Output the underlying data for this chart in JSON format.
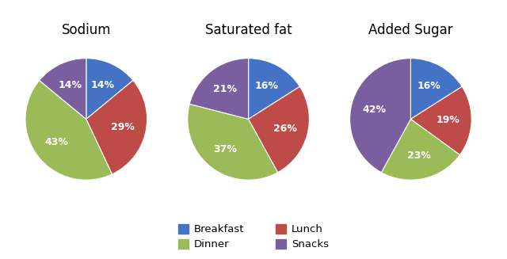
{
  "charts": [
    {
      "title": "Sodium",
      "values": [
        14,
        29,
        43,
        14
      ],
      "labels": [
        "14%",
        "29%",
        "43%",
        "14%"
      ],
      "order": [
        "Breakfast",
        "Lunch",
        "Dinner",
        "Snacks"
      ],
      "startangle": 90
    },
    {
      "title": "Saturated fat",
      "values": [
        16,
        26,
        37,
        21
      ],
      "labels": [
        "16%",
        "26%",
        "37%",
        "21%"
      ],
      "order": [
        "Breakfast",
        "Lunch",
        "Dinner",
        "Snacks"
      ],
      "startangle": 90
    },
    {
      "title": "Added Sugar",
      "values": [
        16,
        19,
        23,
        42
      ],
      "labels": [
        "16%",
        "19%",
        "23%",
        "42%"
      ],
      "order": [
        "Breakfast",
        "Lunch",
        "Dinner",
        "Snacks"
      ],
      "startangle": 90
    }
  ],
  "colors": {
    "Breakfast": "#4472C4",
    "Lunch": "#BE4B48",
    "Dinner": "#9BBB59",
    "Snacks": "#7A5FA0"
  },
  "legend_order": [
    "Breakfast",
    "Dinner",
    "Lunch",
    "Snacks"
  ],
  "background_color": "#ffffff",
  "title_fontsize": 12,
  "label_fontsize": 9
}
